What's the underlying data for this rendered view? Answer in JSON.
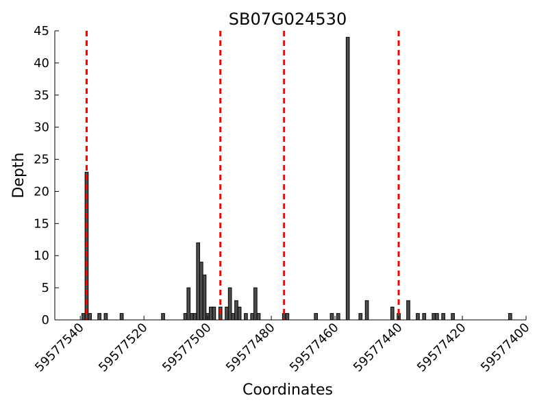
{
  "chart_data": {
    "type": "bar",
    "title": "SB07G024530",
    "xlabel": "Coordinates",
    "ylabel": "Depth",
    "xlim": [
      59577548,
      59577400
    ],
    "ylim": [
      0,
      45
    ],
    "x_ticks": [
      59577540,
      59577520,
      59577500,
      59577480,
      59577460,
      59577440,
      59577420,
      59577400
    ],
    "y_ticks": [
      0,
      5,
      10,
      15,
      20,
      25,
      30,
      35,
      40,
      45
    ],
    "grid": false,
    "bar_color": "#4d4d4d",
    "marker_color": "#ff0000",
    "vertical_markers": [
      59577538,
      59577496,
      59577476,
      59577440
    ],
    "x": [
      59577539,
      59577538,
      59577537,
      59577534,
      59577532,
      59577527,
      59577514,
      59577507,
      59577506,
      59577505,
      59577504,
      59577503,
      59577502,
      59577501,
      59577500,
      59577499,
      59577498,
      59577496,
      59577494,
      59577493,
      59577492,
      59577491,
      59577490,
      59577488,
      59577486,
      59577485,
      59577484,
      59577476,
      59577475,
      59577466,
      59577461,
      59577459,
      59577456,
      59577452,
      59577450,
      59577442,
      59577440,
      59577437,
      59577434,
      59577432,
      59577429,
      59577428,
      59577426,
      59577423,
      59577405
    ],
    "values": [
      1,
      23,
      1,
      1,
      1,
      1,
      1,
      1,
      5,
      1,
      1,
      12,
      9,
      7,
      1,
      2,
      2,
      2,
      2,
      5,
      1,
      3,
      2,
      1,
      1,
      5,
      1,
      1,
      1,
      1,
      1,
      1,
      44,
      1,
      3,
      2,
      1,
      3,
      1,
      1,
      1,
      1,
      1,
      1,
      1
    ]
  }
}
